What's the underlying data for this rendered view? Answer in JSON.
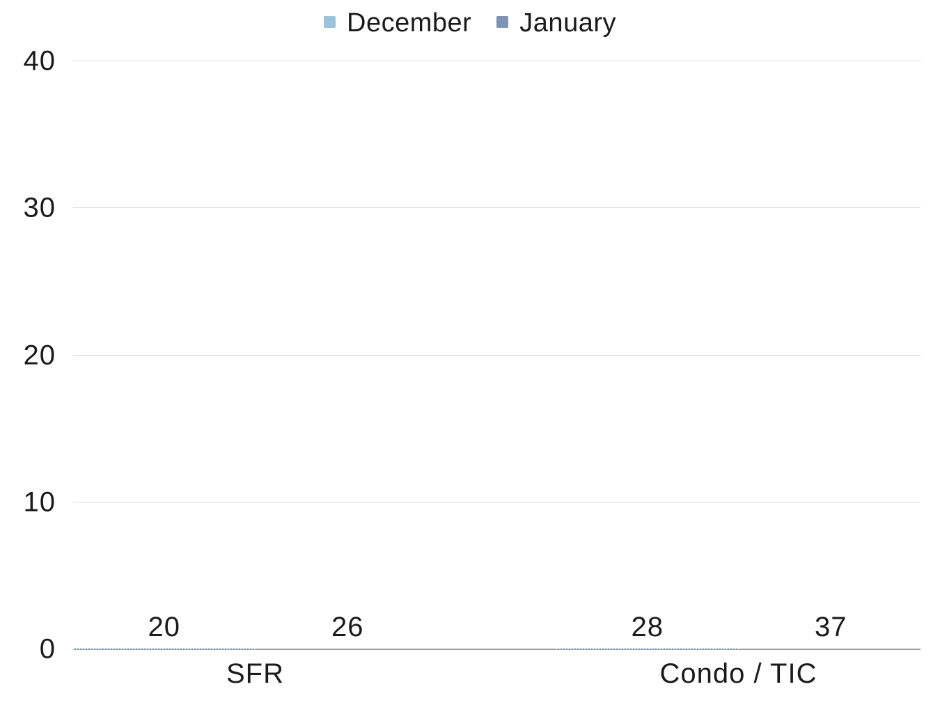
{
  "chart_data": {
    "type": "bar",
    "title": "",
    "categories": [
      "SFR",
      "Condo / TIC"
    ],
    "series": [
      {
        "name": "December",
        "color": "#9BC3DC",
        "values": [
          20,
          28
        ]
      },
      {
        "name": "January",
        "color": "#7D94B3",
        "values": [
          26,
          37
        ]
      }
    ],
    "y_ticks": [
      40,
      30,
      20,
      10,
      0
    ],
    "ylim": [
      0,
      40
    ],
    "xlabel": "",
    "ylabel": "",
    "grid": "horizontal",
    "legend_position": "top-center",
    "colors": {
      "gridline": "#D8D8D8",
      "baseline": "#9A9A9A",
      "text": "#1B1B1B",
      "background": "#FFFFFF"
    }
  }
}
